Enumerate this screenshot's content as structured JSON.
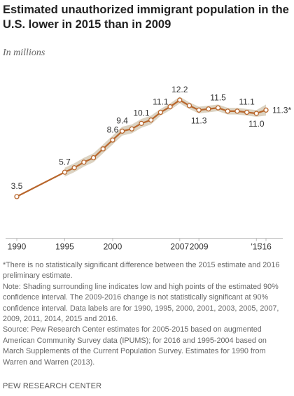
{
  "chart_data": {
    "type": "line",
    "title": "Estimated unauthorized immigrant population in the U.S. lower in 2015 than in 2009",
    "subtitle": "In millions",
    "x": [
      1990,
      1995,
      1996,
      1997,
      1998,
      1999,
      2000,
      2001,
      2002,
      2003,
      2004,
      2005,
      2006,
      2007,
      2008,
      2009,
      2010,
      2011,
      2012,
      2013,
      2014,
      2015,
      2016
    ],
    "values": [
      3.5,
      5.7,
      6.1,
      6.6,
      7.0,
      7.8,
      8.6,
      9.4,
      9.6,
      10.1,
      10.4,
      11.1,
      11.6,
      12.2,
      11.7,
      11.3,
      11.4,
      11.5,
      11.2,
      11.2,
      11.1,
      11.0,
      11.3
    ],
    "value_labels": [
      "3.5",
      "5.7",
      null,
      null,
      null,
      null,
      "8.6",
      "9.4",
      null,
      "10.1",
      null,
      "11.1",
      null,
      "12.2",
      null,
      "11.3",
      null,
      "11.5",
      null,
      null,
      "11.1",
      "11.0",
      "11.3*"
    ],
    "interval_low": [
      null,
      5.3,
      5.7,
      6.2,
      6.6,
      7.4,
      8.2,
      9.0,
      9.2,
      9.7,
      10.0,
      10.8,
      11.3,
      11.9,
      11.4,
      11.0,
      11.1,
      11.2,
      10.9,
      10.9,
      10.8,
      10.7,
      10.8
    ],
    "interval_high": [
      null,
      6.1,
      6.5,
      7.0,
      7.4,
      8.2,
      9.0,
      9.8,
      10.0,
      10.5,
      10.8,
      11.4,
      11.9,
      12.5,
      12.0,
      11.6,
      11.7,
      11.8,
      11.5,
      11.5,
      11.4,
      11.3,
      11.8
    ],
    "color": "#b8662c",
    "band_color": "#dcd3c2",
    "xlim": [
      1990,
      2016
    ],
    "ylim": [
      0,
      14
    ],
    "xticks": [
      1990,
      1995,
      2000,
      2007,
      2009,
      {
        "value": 2015,
        "label": "'15"
      },
      {
        "value": 2016,
        "label": "'16"
      }
    ],
    "grid": false,
    "notes": [
      "*There is no statistically significant difference between the 2015 estimate and 2016 preliminary estimate.",
      "Note: Shading surrounding line indicates low and high points of the estimated 90% confidence interval. The 2009-2016 change is not statistically significant at 90% confidence interval. Data labels are for 1990, 1995, 2000, 2001, 2003, 2005, 2007, 2009, 2011, 2014, 2015 and 2016.",
      "Source: Pew Research Center estimates for 2005-2015 based on augmented American Community Survey data (IPUMS); for 2016 and 1995-2004 based on March Supplements of the Current Population Survey. Estimates for 1990 from Warren and Warren (2013)."
    ],
    "credit": "PEW RESEARCH CENTER"
  }
}
